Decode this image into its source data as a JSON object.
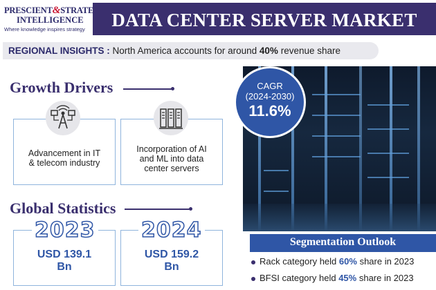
{
  "logo": {
    "line1_a": "PRESCIENT",
    "line1_amp": "&",
    "line1_b": "STRATEGIC",
    "line2": "INTELLIGENCE",
    "tagline": "Where knowledge inspires strategy"
  },
  "header": {
    "title": "DATA CENTER SERVER MARKET"
  },
  "insights": {
    "label": "REGIONAL INSIGHTS :",
    "text_before": "North America accounts for around",
    "highlight": "40%",
    "text_after": "revenue share"
  },
  "cagr": {
    "label": "CAGR",
    "period": "(2024-2030)",
    "value": "11.6%"
  },
  "growth_drivers": {
    "title": "Growth Drivers",
    "items": [
      {
        "icon": "telecom-tower-icon",
        "label_line1": "Advancement in IT",
        "label_line2": "& telecom industry",
        "label_line3": ""
      },
      {
        "icon": "server-icon",
        "label_line1": "Incorporation of AI",
        "label_line2": "and ML into data",
        "label_line3": "center servers"
      }
    ]
  },
  "global_statistics": {
    "title": "Global Statistics",
    "items": [
      {
        "year": "2023",
        "value_line1": "USD 139.1",
        "value_line2": "Bn"
      },
      {
        "year": "2024",
        "value_line1": "USD 159.2",
        "value_line2": "Bn"
      }
    ]
  },
  "segmentation": {
    "title": "Segmentation Outlook",
    "items": [
      {
        "before": "Rack category held",
        "highlight": "60%",
        "after": "share in 2023"
      },
      {
        "before": "BFSI category held",
        "highlight": "45%",
        "after": "share in 2023"
      }
    ]
  },
  "colors": {
    "brand_purple": "#3a2f6e",
    "accent_blue": "#2f56a6",
    "card_border": "#8fb4dc"
  }
}
